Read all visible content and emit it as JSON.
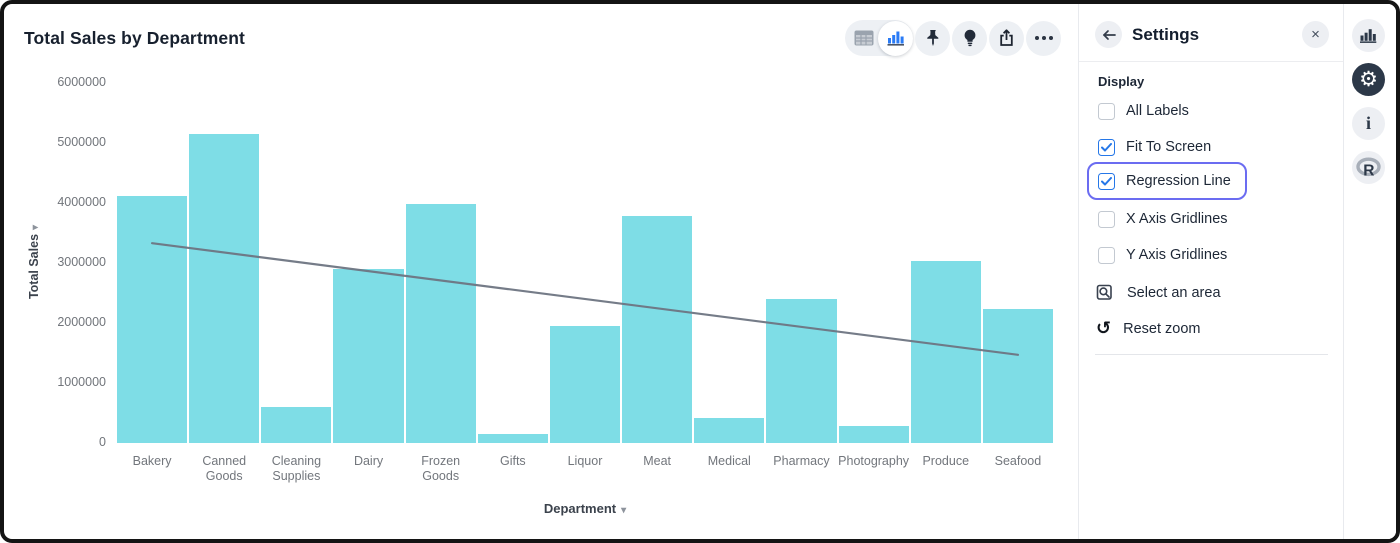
{
  "header": {
    "title": "Total Sales by Department"
  },
  "toolbar": {
    "icons": [
      {
        "name": "table-view-icon",
        "selected": false
      },
      {
        "name": "bar-chart-view-icon",
        "selected": true
      },
      {
        "name": "pin-icon"
      },
      {
        "name": "lightbulb-icon"
      },
      {
        "name": "share-icon"
      },
      {
        "name": "more-icon"
      }
    ]
  },
  "chart_data": {
    "type": "bar",
    "title": "Total Sales by Department",
    "xlabel": "Department",
    "ylabel": "Total Sales",
    "categories": [
      "Bakery",
      "Canned Goods",
      "Cleaning Supplies",
      "Dairy",
      "Frozen Goods",
      "Gifts",
      "Liquor",
      "Meat",
      "Medical",
      "Pharmacy",
      "Photography",
      "Produce",
      "Seafood"
    ],
    "values": [
      4120000,
      5150000,
      600000,
      2900000,
      3980000,
      150000,
      1950000,
      3790000,
      420000,
      2400000,
      290000,
      3030000,
      2230000
    ],
    "ylim": [
      0,
      6000000
    ],
    "yticks": [
      0,
      1000000,
      2000000,
      3000000,
      4000000,
      5000000,
      6000000
    ],
    "bar_color": "#7edde6",
    "gridlines": false,
    "legend": "none",
    "regression_line": {
      "start_value": 3330000,
      "end_value": 1470000,
      "color": "#6e7582"
    }
  },
  "settings_panel": {
    "back_icon": "back-arrow-icon",
    "close_icon": "close-icon",
    "title": "Settings",
    "section": "Display",
    "checkboxes": [
      {
        "label": "All Labels",
        "checked": false,
        "focused": false
      },
      {
        "label": "Fit To Screen",
        "checked": true,
        "focused": false
      },
      {
        "label": "Regression Line",
        "checked": true,
        "focused": true
      },
      {
        "label": "X Axis Gridlines",
        "checked": false,
        "focused": false
      },
      {
        "label": "Y Axis Gridlines",
        "checked": false,
        "focused": false
      }
    ],
    "actions": [
      {
        "label": "Select an area",
        "icon": "select-area-icon"
      },
      {
        "label": "Reset zoom",
        "icon": "reset-zoom-icon",
        "glyph": "↺"
      }
    ]
  },
  "right_rail": {
    "icons": [
      {
        "name": "chart-icon",
        "active": false
      },
      {
        "name": "settings-gear-icon",
        "active": true,
        "glyph": "⚙"
      },
      {
        "name": "info-icon",
        "active": false,
        "glyph": "i"
      },
      {
        "name": "r-logo-icon",
        "active": false,
        "glyph": "R"
      }
    ]
  },
  "colors": {
    "bar": "#7edde6",
    "regression_line": "#6e7582",
    "accent_blue": "#2577e8",
    "focus_ring": "#6b6cf1",
    "icon_dark": "#222b39"
  }
}
